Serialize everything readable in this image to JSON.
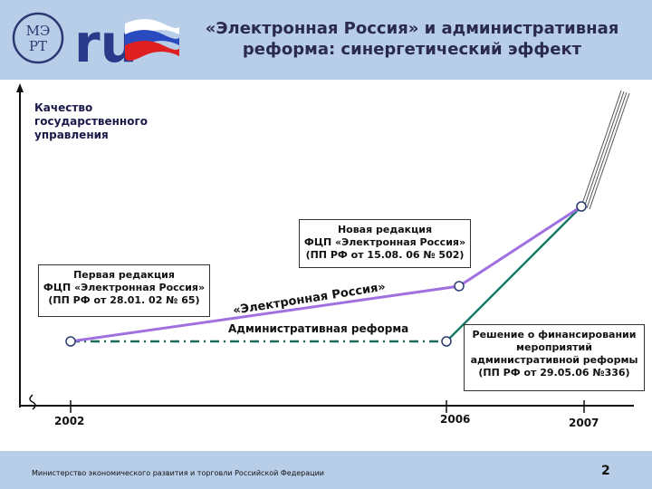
{
  "header": {
    "title_line1": "«Электронная Россия» и административная",
    "title_line2": "реформа: синергетический эффект"
  },
  "logo": {
    "mark": "МЭРТ",
    "text": "ru"
  },
  "colors": {
    "header_bg": "#b7cde8",
    "erussia_line": "#a070e0",
    "reform_line": "#1a7a6a",
    "dashed_line": "#1a6a5a",
    "axis": "#111111"
  },
  "chart_data": {
    "type": "line",
    "ylabel": "Качество государственного управления",
    "x_ticks": [
      "2002",
      "2006",
      "2007"
    ],
    "series": [
      {
        "name": "«Электронная Россия»",
        "points": [
          [
            "2002",
            1
          ],
          [
            "2006",
            2
          ],
          [
            "2007",
            4
          ]
        ]
      },
      {
        "name": "Административная реформа",
        "points": [
          [
            "2002",
            1
          ],
          [
            "2006",
            1
          ],
          [
            "2007",
            4
          ]
        ]
      }
    ],
    "annotations": [
      {
        "lines": [
          "Первая редакция",
          "ФЦП «Электронная Россия»",
          "(ПП РФ от 28.01. 02 № 65)"
        ]
      },
      {
        "lines": [
          "Новая редакция",
          "ФЦП «Электронная Россия»",
          "(ПП РФ от 15.08. 06 № 502)"
        ]
      },
      {
        "lines": [
          "Решение о финансировании",
          "мероприятий",
          "административной реформы",
          "(ПП РФ от 29.05.06 №336)"
        ]
      }
    ],
    "adm_label": "Административная реформа",
    "erussia_label": "«Электронная Россия»"
  },
  "footer": {
    "text": "Министерство экономического развития и торговли Российской Федерации",
    "page": "2"
  }
}
